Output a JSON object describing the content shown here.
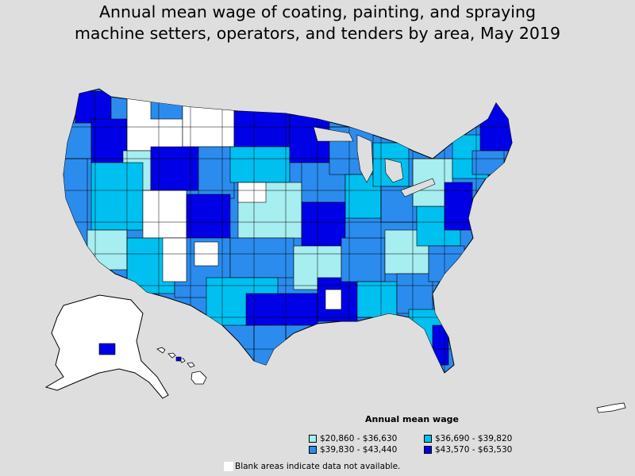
{
  "title_line1": "Annual mean wage of coating, painting, and spraying",
  "title_line2": "machine setters, operators, and tenders by area, May 2019",
  "legend": {
    "title": "Annual mean wage",
    "items": [
      {
        "label": "$20,860 - $36,630",
        "color": "#a6eef0"
      },
      {
        "label": "$36,690 - $39,820",
        "color": "#00c0f0"
      },
      {
        "label": "$39,830 - $43,440",
        "color": "#2b8cee"
      },
      {
        "label": "$43,570 - $63,530",
        "color": "#0000e6"
      }
    ]
  },
  "note": "Blank areas indicate data not available.",
  "colors": {
    "background": "#dedede",
    "blank": "#ffffff",
    "border": "#000000"
  }
}
